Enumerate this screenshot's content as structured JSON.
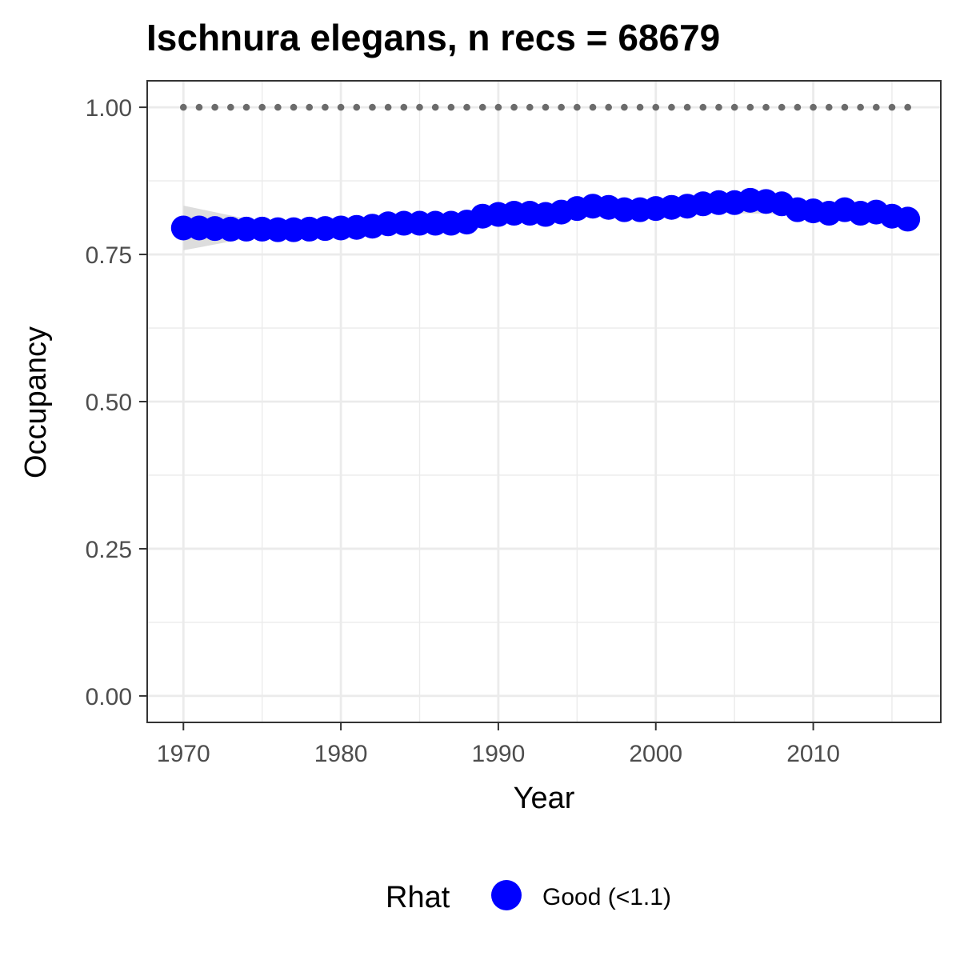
{
  "chart_data": {
    "type": "scatter",
    "title": "Ischnura elegans, n recs = 68679",
    "xlabel": "Year",
    "ylabel": "Occupancy",
    "xlim": [
      1967.7,
      2018.1
    ],
    "ylim": [
      -0.045,
      1.045
    ],
    "x_major_ticks": [
      1970,
      1980,
      1990,
      2000,
      2010
    ],
    "x_tick_labels": [
      "1970",
      "1980",
      "1990",
      "2000",
      "2010"
    ],
    "x_minor_ticks": [
      1975,
      1985,
      1995,
      2005,
      2015
    ],
    "y_major_ticks": [
      0,
      0.25,
      0.5,
      0.75,
      1.0
    ],
    "y_tick_labels": [
      "0.00",
      "0.25",
      "0.50",
      "0.75",
      "1.00"
    ],
    "y_minor_ticks": [
      0.125,
      0.375,
      0.625,
      0.875
    ],
    "grid": true,
    "legend": {
      "title": "Rhat",
      "placement": "bottom",
      "entries": [
        "Good (<1.1)"
      ]
    },
    "colors": {
      "points": "#0000ff",
      "reference": "#6b6b6b",
      "ribbon": "#d9d9d9",
      "grid": "#ebebeb",
      "panel_border": "#333333"
    },
    "series": [
      {
        "name": "Good (<1.1)",
        "x": [
          1970,
          1971,
          1972,
          1973,
          1974,
          1975,
          1976,
          1977,
          1978,
          1979,
          1980,
          1981,
          1982,
          1983,
          1984,
          1985,
          1986,
          1987,
          1988,
          1989,
          1990,
          1991,
          1992,
          1993,
          1994,
          1995,
          1996,
          1997,
          1998,
          1999,
          2000,
          2001,
          2002,
          2003,
          2004,
          2005,
          2006,
          2007,
          2008,
          2009,
          2010,
          2011,
          2012,
          2013,
          2014,
          2015,
          2016
        ],
        "y": [
          0.795,
          0.795,
          0.794,
          0.793,
          0.793,
          0.793,
          0.792,
          0.792,
          0.793,
          0.794,
          0.795,
          0.796,
          0.798,
          0.802,
          0.803,
          0.803,
          0.803,
          0.803,
          0.805,
          0.815,
          0.818,
          0.82,
          0.82,
          0.818,
          0.822,
          0.828,
          0.832,
          0.83,
          0.826,
          0.826,
          0.828,
          0.83,
          0.832,
          0.836,
          0.838,
          0.838,
          0.842,
          0.84,
          0.836,
          0.826,
          0.824,
          0.82,
          0.826,
          0.82,
          0.822,
          0.815,
          0.81
        ]
      }
    ],
    "reference_line": {
      "x": [
        1970,
        1971,
        1972,
        1973,
        1974,
        1975,
        1976,
        1977,
        1978,
        1979,
        1980,
        1981,
        1982,
        1983,
        1984,
        1985,
        1986,
        1987,
        1988,
        1989,
        1990,
        1991,
        1992,
        1993,
        1994,
        1995,
        1996,
        1997,
        1998,
        1999,
        2000,
        2001,
        2002,
        2003,
        2004,
        2005,
        2006,
        2007,
        2008,
        2009,
        2010,
        2011,
        2012,
        2013,
        2014,
        2015,
        2016
      ],
      "y": 1.0
    },
    "ribbon": {
      "x": [
        1970,
        1975,
        1980,
        1985,
        1990,
        2000,
        2010,
        2016
      ],
      "lower": [
        0.757,
        0.782,
        0.788,
        0.797,
        0.812,
        0.822,
        0.818,
        0.804
      ],
      "upper": [
        0.833,
        0.805,
        0.802,
        0.809,
        0.824,
        0.834,
        0.83,
        0.817
      ]
    }
  }
}
